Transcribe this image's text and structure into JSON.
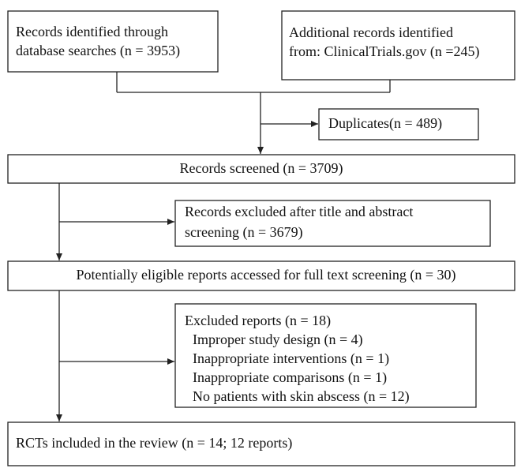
{
  "nodes": [
    {
      "lines": [
        "Records identified through",
        "database searches (n = 3953)"
      ]
    },
    {
      "lines": [
        "Additional records identified",
        "from: ClinicalTrials.gov (n =245)"
      ]
    },
    {
      "lines": [
        "Duplicates(n = 489)"
      ]
    },
    {
      "lines": [
        "Records screened (n = 3709)"
      ]
    },
    {
      "lines": [
        "Records excluded after title and abstract",
        "screening (n = 3679)"
      ]
    },
    {
      "lines": [
        "Potentially eligible reports accessed for full text screening (n = 30)"
      ]
    },
    {
      "lines": [
        "Excluded reports (n = 18)",
        "Improper study design (n = 4)",
        "Inappropriate interventions (n = 1)",
        "Inappropriate comparisons (n = 1)",
        "No patients with skin abscess (n = 12)"
      ]
    },
    {
      "lines": [
        "RCTs included in the review (n = 14; 12 reports)"
      ]
    }
  ]
}
